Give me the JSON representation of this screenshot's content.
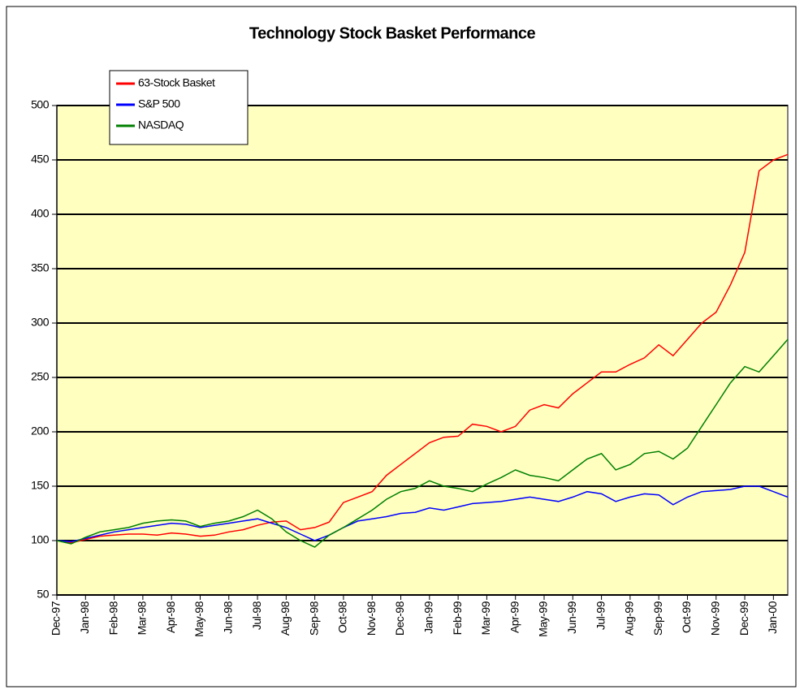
{
  "chart_data": {
    "type": "line",
    "title": "Technology Stock Basket Performance",
    "categories": [
      "Dec-97",
      null,
      "Jan-98",
      null,
      "Feb-98",
      null,
      "Mar-98",
      null,
      "Apr-98",
      null,
      "May-98",
      null,
      "Jun-98",
      null,
      "Jul-98",
      null,
      "Aug-98",
      null,
      "Sep-98",
      null,
      "Oct-98",
      null,
      "Nov-98",
      null,
      "Dec-98",
      null,
      "Jan-99",
      null,
      "Feb-99",
      null,
      "Mar-99",
      null,
      "Apr-99",
      null,
      "May-99",
      null,
      "Jun-99",
      null,
      "Jul-99",
      null,
      "Aug-99",
      null,
      "Sep-99",
      null,
      "Oct-99",
      null,
      "Nov-99",
      null,
      "Dec-99",
      null,
      "Jan-00",
      null
    ],
    "series": [
      {
        "name": "63-Stock Basket",
        "color": "#ff0000",
        "values": [
          100,
          98,
          101,
          104,
          105,
          106,
          106,
          105,
          107,
          106,
          104,
          105,
          108,
          110,
          114,
          117,
          118,
          110,
          112,
          117,
          135,
          140,
          145,
          160,
          170,
          180,
          190,
          195,
          196,
          207,
          205,
          200,
          205,
          220,
          225,
          222,
          235,
          245,
          255,
          255,
          262,
          268,
          280,
          270,
          285,
          300,
          310,
          335,
          365,
          440,
          450,
          455
        ]
      },
      {
        "name": "S&P 500",
        "color": "#0000ff",
        "values": [
          100,
          99,
          102,
          105,
          108,
          110,
          112,
          114,
          116,
          115,
          112,
          114,
          116,
          118,
          120,
          116,
          112,
          106,
          100,
          105,
          112,
          118,
          120,
          122,
          125,
          126,
          130,
          128,
          131,
          134,
          135,
          136,
          138,
          140,
          138,
          136,
          140,
          145,
          143,
          136,
          140,
          143,
          142,
          133,
          140,
          145,
          146,
          147,
          150,
          150,
          145,
          140
        ]
      },
      {
        "name": "NASDAQ",
        "color": "#008000",
        "values": [
          100,
          97,
          103,
          108,
          110,
          112,
          116,
          118,
          119,
          118,
          113,
          116,
          118,
          122,
          128,
          120,
          108,
          100,
          94,
          105,
          112,
          120,
          128,
          138,
          145,
          148,
          155,
          150,
          148,
          145,
          152,
          158,
          165,
          160,
          158,
          155,
          165,
          175,
          180,
          165,
          170,
          180,
          182,
          175,
          185,
          205,
          225,
          245,
          260,
          255,
          270,
          285
        ]
      }
    ],
    "ylim": [
      50,
      500
    ],
    "yticks": [
      50,
      100,
      150,
      200,
      250,
      300,
      350,
      400,
      450,
      500
    ],
    "grid": true,
    "background": "#ffffc0"
  }
}
